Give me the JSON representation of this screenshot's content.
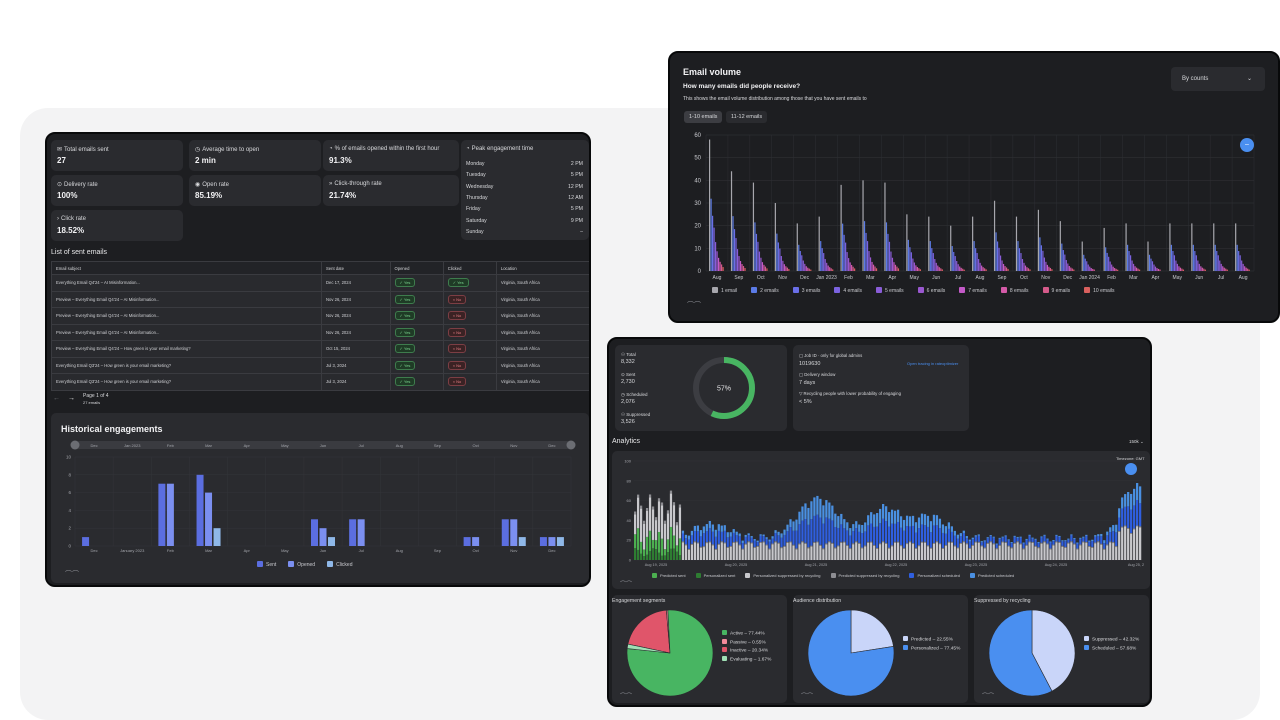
{
  "left": {
    "stats": [
      {
        "icon": "envelope-icon",
        "glyph": "✉",
        "label": "Total emails sent",
        "value": "27"
      },
      {
        "icon": "clock-icon",
        "glyph": "◷",
        "label": "Average time to open",
        "value": "2 min"
      },
      {
        "icon": "pie-icon",
        "glyph": "◔",
        "label": "% of emails opened within the first hour",
        "value": "91.3%"
      },
      {
        "icon": "delivery-icon",
        "glyph": "⊙",
        "label": "Delivery rate",
        "value": "100%"
      },
      {
        "icon": "eye-icon",
        "glyph": "◉",
        "label": "Open rate",
        "value": "85.19%"
      },
      {
        "icon": "chevrons-icon",
        "glyph": "»",
        "label": "Click-through rate",
        "value": "21.74%"
      },
      {
        "icon": "chevron-icon",
        "glyph": "›",
        "label": "Click rate",
        "value": "18.52%"
      }
    ],
    "peak": {
      "title": "Peak engagement time",
      "days": [
        {
          "day": "Monday",
          "time": "2 PM"
        },
        {
          "day": "Tuesday",
          "time": "5 PM"
        },
        {
          "day": "Wednesday",
          "time": "12 PM"
        },
        {
          "day": "Thursday",
          "time": "12 AM"
        },
        {
          "day": "Friday",
          "time": "5 PM"
        },
        {
          "day": "Saturday",
          "time": "9 PM"
        },
        {
          "day": "Sunday",
          "time": "–"
        }
      ]
    },
    "list_title": "List of sent emails",
    "columns": [
      "Email subject",
      "Sent date",
      "Opened",
      "Clicked",
      "Location"
    ],
    "rows": [
      {
        "subject": "Everything Email Q4'24 – AI Misinformation...",
        "date": "Dec 17, 2024",
        "opened": "Yes",
        "clicked": "Yes",
        "location": "Virginia, South Africa"
      },
      {
        "subject": "Preview – Everything Email Q4'24 – AI Misinformation...",
        "date": "Nov 26, 2024",
        "opened": "Yes",
        "clicked": "No",
        "location": "Virginia, South Africa"
      },
      {
        "subject": "Preview – Everything Email Q4'24 – AI Misinformation...",
        "date": "Nov 26, 2024",
        "opened": "Yes",
        "clicked": "No",
        "location": "Virginia, South Africa"
      },
      {
        "subject": "Preview – Everything Email Q4'24 – AI Misinformation...",
        "date": "Nov 26, 2024",
        "opened": "Yes",
        "clicked": "No",
        "location": "Virginia, South Africa"
      },
      {
        "subject": "Preview – Everything Email Q4'24 – How green is your email marketing?",
        "date": "Oct 15, 2024",
        "opened": "Yes",
        "clicked": "No",
        "location": "Virginia, South Africa"
      },
      {
        "subject": "Everything Email Q3'24 – How green is your email marketing?",
        "date": "Jul 3, 2024",
        "opened": "Yes",
        "clicked": "No",
        "location": "Virginia, South Africa"
      },
      {
        "subject": "Everything Email Q3'24 – How green is your email marketing?",
        "date": "Jul 3, 2024",
        "opened": "Yes",
        "clicked": "No",
        "location": "Virginia, South Africa"
      }
    ],
    "pagination": {
      "page": "Page 1 of 4",
      "count": "27 emails"
    },
    "hist_title": "Historical engagements"
  },
  "email_volume": {
    "title": "Email volume",
    "subtitle": "How many emails did people receive?",
    "description": "This shows the email volume distribution among those that you have sent emails to",
    "dropdown": "By counts",
    "tabs": [
      "1-10 emails",
      "11-12 emails"
    ]
  },
  "audience": {
    "total_label": "Total",
    "total": "8,332",
    "sent_label": "Sent",
    "sent": "2,730",
    "scheduled_label": "Scheduled",
    "scheduled": "2,076",
    "suppressed_label": "Suppressed",
    "suppressed": "3,526",
    "donut_pct": "57%",
    "donut_fraction": 0.57,
    "job_label": "Job ID · only for global admins",
    "job_id": "1019630",
    "job_link": "Open tracing in rateoptimizer",
    "window_label": "Delivery window",
    "window": "7 days",
    "recycling_label": "Recycling people with lower probability of engaging",
    "recycling": "< 5%",
    "analytics_title": "Analytics",
    "analytics_range": "150k",
    "timezone": "Timezone: GMT"
  },
  "chart_data": [
    {
      "type": "bar",
      "title": "Historical engagements",
      "categories": [
        "Dec",
        "January 2023",
        "Feb",
        "Mar",
        "Apr",
        "May",
        "Jun",
        "Jul",
        "Aug",
        "Sep",
        "Oct",
        "Nov",
        "Dec"
      ],
      "ylim": [
        0,
        10
      ],
      "yticks": [
        0,
        2,
        4,
        6,
        8,
        10
      ],
      "range_labels": [
        "Dec",
        "Jan 2023",
        "Feb",
        "Mar",
        "Apr",
        "May",
        "Jun",
        "Jul",
        "Aug",
        "Sep",
        "Oct",
        "Nov",
        "Dec"
      ],
      "series": [
        {
          "name": "Sent",
          "color": "#5b6ee0",
          "values": [
            1,
            0,
            7,
            8,
            0,
            0,
            3,
            3,
            0,
            0,
            1,
            3,
            1
          ]
        },
        {
          "name": "Opened",
          "color": "#7b8ff0",
          "values": [
            0,
            0,
            7,
            6,
            0,
            0,
            2,
            3,
            0,
            0,
            1,
            3,
            1
          ]
        },
        {
          "name": "Clicked",
          "color": "#8fb8e8",
          "values": [
            0,
            0,
            0,
            2,
            0,
            0,
            1,
            0,
            0,
            0,
            0,
            1,
            1
          ]
        }
      ]
    },
    {
      "type": "bar",
      "title": "Email volume",
      "categories": [
        "Aug",
        "Sep",
        "Oct",
        "Nov",
        "Dec",
        "Jan 2023",
        "Feb",
        "Mar",
        "Apr",
        "May",
        "Jun",
        "Jul",
        "Aug",
        "Sep",
        "Oct",
        "Nov",
        "Dec",
        "Jan 2024",
        "Feb",
        "Mar",
        "Apr",
        "May",
        "Jun",
        "Jul",
        "Aug"
      ],
      "ylim": [
        0,
        60
      ],
      "yticks": [
        0,
        10,
        20,
        30,
        40,
        50,
        60
      ],
      "series_names": [
        "1 email",
        "2 emails",
        "3 emails",
        "4 emails",
        "5 emails",
        "6 emails",
        "7 emails",
        "8 emails",
        "9 emails",
        "10 emails"
      ],
      "series_colors": [
        "#a7a7ad",
        "#5b7be6",
        "#6a6fe8",
        "#7b63e0",
        "#8a5dd8",
        "#9a58d0",
        "#c45ac8",
        "#d45aa8",
        "#d45a8a",
        "#d9605e"
      ],
      "peaks": [
        58,
        44,
        39,
        30,
        21,
        24,
        38,
        40,
        39,
        25,
        24,
        20,
        24,
        31,
        24,
        27,
        22,
        13,
        19,
        21,
        13,
        21,
        21,
        21,
        21
      ]
    },
    {
      "type": "bar",
      "title": "Analytics",
      "categories": [
        "Aug 19, 2025",
        "Aug 20, 2025",
        "Aug 21, 2025",
        "Aug 22, 2025",
        "Aug 23, 2025",
        "Aug 24, 2025",
        "Aug 25, 2"
      ],
      "ylim": [
        0,
        100
      ],
      "yticks": [
        0,
        20,
        40,
        60,
        80,
        100
      ],
      "series": [
        {
          "name": "Predicted sent",
          "color": "#4caf50"
        },
        {
          "name": "Personalized sent",
          "color": "#2e7d32"
        },
        {
          "name": "Personalized suppressed by recycling",
          "color": "#c8c8cc"
        },
        {
          "name": "Predicted suppressed by recycling",
          "color": "#8d8d92"
        },
        {
          "name": "Personalized scheduled",
          "color": "#2f5fe0"
        },
        {
          "name": "Predicted scheduled",
          "color": "#4a90e2"
        }
      ]
    },
    {
      "type": "pie",
      "title": "Engagement segments",
      "slices": [
        {
          "label": "Active",
          "text": "Active – 77.44%",
          "value": 77.44,
          "color": "#48b562"
        },
        {
          "label": "Passive",
          "text": "Passive – 0.55%",
          "value": 0.55,
          "color": "#f28b9b"
        },
        {
          "label": "Inactive",
          "text": "Inactive – 20.34%",
          "value": 20.34,
          "color": "#e0556a"
        },
        {
          "label": "Evaluating",
          "text": "Evaluating – 1.67%",
          "value": 1.67,
          "color": "#9fe0b5"
        }
      ]
    },
    {
      "type": "pie",
      "title": "Audience distribution",
      "slices": [
        {
          "label": "Predicted",
          "text": "Predicted – 22.55%",
          "value": 22.55,
          "color": "#c9d5f9"
        },
        {
          "label": "Personalized",
          "text": "Personalized – 77.45%",
          "value": 77.45,
          "color": "#4a8ff0"
        }
      ]
    },
    {
      "type": "pie",
      "title": "Suppressed by recycling",
      "slices": [
        {
          "label": "Suppressed",
          "text": "Suppressed – 42.32%",
          "value": 42.32,
          "color": "#c9d5f9"
        },
        {
          "label": "Scheduled",
          "text": "Scheduled – 57.68%",
          "value": 57.68,
          "color": "#4a8ff0"
        }
      ]
    }
  ]
}
